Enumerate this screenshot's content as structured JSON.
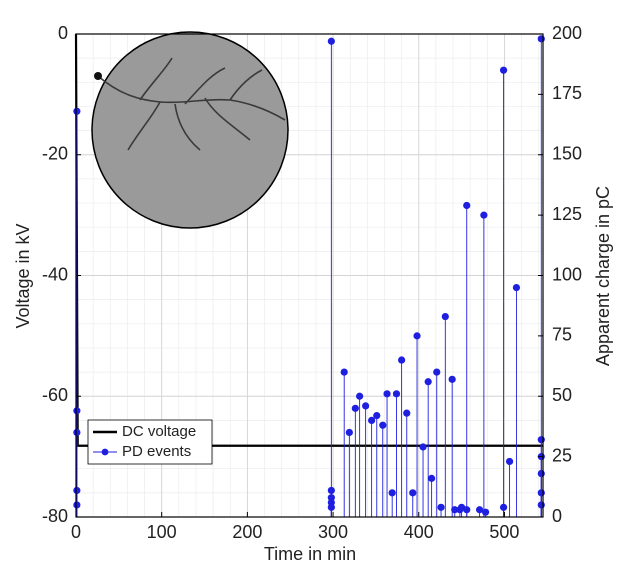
{
  "chart_data": {
    "type": "line",
    "xlabel": "Time in min",
    "ylabel": "Voltage in kV",
    "y2label": "Apparent charge in pC",
    "xlim": [
      0,
      545
    ],
    "xticks": [
      0,
      100,
      200,
      300,
      400,
      500
    ],
    "ylim": [
      -80,
      0
    ],
    "yticks": [
      -80,
      -60,
      -40,
      -20,
      0
    ],
    "y2lim": [
      0,
      200
    ],
    "y2ticks": [
      0,
      25,
      50,
      75,
      100,
      125,
      150,
      175,
      200
    ],
    "grid": true,
    "minor_grid": true,
    "legend": "lower left",
    "series": [
      {
        "name": "DC voltage",
        "color": "#000000",
        "style": "line",
        "axis": "y",
        "x": [
          0,
          2,
          545
        ],
        "values": [
          0,
          -68.2,
          -68.2
        ]
      },
      {
        "name": "PD events",
        "color": "#1f1fe0",
        "style": "stem",
        "axis": "y2",
        "x": [
          1,
          1,
          1,
          1,
          1,
          298,
          298,
          298,
          298,
          298,
          313,
          319,
          326,
          331,
          338,
          345,
          351,
          358,
          363,
          369,
          374,
          380,
          386,
          393,
          398,
          405,
          411,
          415,
          421,
          426,
          431,
          439,
          442,
          448,
          450,
          456,
          456,
          471,
          476,
          478,
          499,
          499,
          506,
          514,
          543,
          543,
          543,
          543,
          543,
          543
        ],
        "values": [
          168,
          44,
          35,
          11,
          5,
          197,
          11,
          8,
          6,
          4,
          60,
          35,
          45,
          50,
          46,
          40,
          42,
          38,
          51,
          10,
          51,
          65,
          43,
          10,
          75,
          29,
          56,
          16,
          60,
          4,
          83,
          57,
          3,
          3,
          4,
          129,
          3,
          3,
          125,
          2,
          185,
          4,
          23,
          95,
          198,
          32,
          25,
          18,
          10,
          5
        ]
      }
    ]
  }
}
